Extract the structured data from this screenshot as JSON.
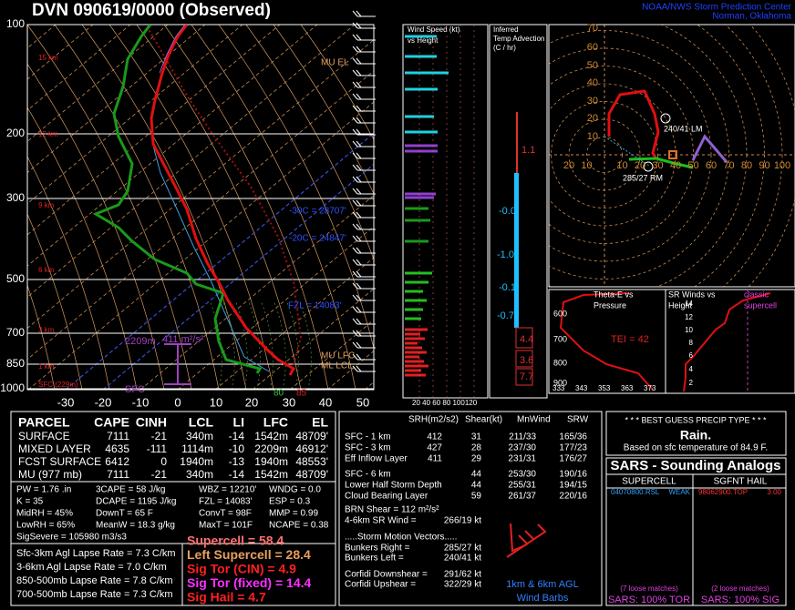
{
  "header": {
    "title": "DVN  090619/0000  (Observed)",
    "org": "NOAA/NWS Storm Prediction Center",
    "place": "Norman, Oklahoma"
  },
  "skewt": {
    "pressures": [
      "100",
      "200",
      "300",
      "500",
      "700",
      "850",
      "1000"
    ],
    "heights": [
      "15 km",
      "12 km",
      "9 km",
      "6 km",
      "3 km",
      "1 km",
      "SFC (229m)"
    ],
    "temps": [
      "-30",
      "-20",
      "-10",
      "0",
      "10",
      "20",
      "30",
      "40",
      "50"
    ],
    "annotations": [
      "MU EL",
      "-30C = 28707'",
      "-20C = 24847'",
      "FZL = 14083'",
      "2209m",
      "411 m²/s²",
      "MU LFC",
      "ML LCL",
      "SFC",
      "80",
      "85"
    ]
  },
  "wind_speed": {
    "title": [
      "Wind Speed (kt)",
      "vs Height"
    ],
    "axis": "20 40 60 80 100120"
  },
  "advection": {
    "title": [
      "Inferred",
      "Temp Advection",
      "(C / hr)"
    ],
    "values": [
      "1.1",
      "-0.0",
      "-1.0",
      "-0.1",
      "-0.7",
      "4.4",
      "3.6",
      "7.7"
    ]
  },
  "hodograph": {
    "rings_y": [
      "70",
      "60",
      "50",
      "40",
      "30",
      "20",
      "10"
    ],
    "rings_x": [
      "20",
      "10",
      "10",
      "20",
      "30",
      "40",
      "50",
      "60",
      "70",
      "80",
      "90",
      "100"
    ],
    "labels": [
      "240/41 LM",
      "285/27 RM"
    ]
  },
  "theta_e": {
    "title": [
      "Theta-E vs",
      "Pressure"
    ],
    "tei": "TEI = 42",
    "pressures": [
      "600",
      "700",
      "800",
      "900"
    ],
    "thetas": [
      "333",
      "343",
      "353",
      "363",
      "373"
    ]
  },
  "sr_winds": {
    "title": [
      "SR Winds vs",
      "Height"
    ],
    "note": [
      "classic",
      "supercell"
    ],
    "heights": [
      "14",
      "12",
      "10",
      "8",
      "6",
      "4",
      "2"
    ]
  },
  "parcel": {
    "header": [
      "PARCEL",
      "CAPE",
      "CINH",
      "LCL",
      "LI",
      "LFC",
      "EL"
    ],
    "rows": [
      [
        "SURFACE",
        "7111",
        "-21",
        "340m",
        "-14",
        "1542m",
        "48709'"
      ],
      [
        "MIXED LAYER",
        "4635",
        "-111",
        "1114m",
        "-10",
        "2209m",
        "46912'"
      ],
      [
        "FCST SURFACE",
        "6412",
        "0",
        "1940m",
        "-13",
        "1940m",
        "48553'"
      ],
      [
        "MU  (977 mb)",
        "7111",
        "-21",
        "340m",
        "-14",
        "1542m",
        "48709'"
      ]
    ]
  },
  "params": [
    [
      "PW = 1.76 .in",
      "3CAPE = 58 J/kg",
      "WBZ = 12210'",
      "WNDG = 0.0"
    ],
    [
      "K = 35",
      "DCAPE = 1195 J/kg",
      "FZL = 14083'",
      "ESP = 0.3"
    ],
    [
      "MidRH = 45%",
      "DownT = 65 F",
      "ConvT = 98F",
      "MMP = 0.99"
    ],
    [
      "LowRH = 65%",
      "MeanW = 18.3 g/kg",
      "MaxT = 101F",
      "NCAPE = 0.38"
    ]
  ],
  "sig_severe": "SigSevere = 105980 m3/s3",
  "lapse_rates": [
    "Sfc-3km Agl Lapse Rate = 7.3 C/km",
    "3-6km Agl Lapse Rate = 7.0 C/km",
    "850-500mb Lapse Rate = 7.8 C/km",
    "700-500mb Lapse Rate = 7.3 C/km"
  ],
  "indices": [
    "Supercell = 58.4",
    "Left Supercell = 28.4",
    "Sig Tor (CIN) = 4.9",
    "Sig Tor (fixed) = 14.4",
    "Sig Hail = 4.7"
  ],
  "kinematics": {
    "header": [
      "SRH(m2/s2)",
      "Shear(kt)",
      "MnWind",
      "SRW"
    ],
    "rows": [
      [
        "SFC - 1 km",
        "412",
        "31",
        "211/33",
        "165/36"
      ],
      [
        "SFC - 3 km",
        "427",
        "28",
        "237/30",
        "177/23"
      ],
      [
        "Eff Inflow Layer",
        "411",
        "29",
        "231/31",
        "176/27"
      ]
    ],
    "deep_rows": [
      [
        "SFC - 6 km",
        "44",
        "253/30",
        "190/16"
      ],
      [
        "Lower Half Storm Depth",
        "44",
        "255/31",
        "194/15"
      ],
      [
        "Cloud Bearing Layer",
        "59",
        "261/37",
        "220/16"
      ]
    ]
  },
  "brn": "BRN Shear = 112 m²/s²",
  "sr_wind": [
    "4-6km SR Wind =",
    "266/19 kt"
  ],
  "motion": {
    "title": ".....Storm Motion Vectors.....",
    "rows": [
      [
        "Bunkers Right =",
        "285/27 kt"
      ],
      [
        "Bunkers Left =",
        "240/41 kt"
      ],
      [
        "Corfidi Downshear =",
        "291/62 kt"
      ],
      [
        "Corfidi Upshear =",
        "322/29 kt"
      ]
    ]
  },
  "barb_legend": [
    "1km & 6km AGL",
    "Wind Barbs"
  ],
  "precip": {
    "title": "* * * BEST GUESS PRECIP TYPE * * *",
    "type": "Rain.",
    "note": "Based on sfc temperature of 84.9 F."
  },
  "sars": {
    "title": "SARS - Sounding Analogs",
    "headers": [
      "SUPERCELL",
      "SGFNT HAIL"
    ],
    "supercell": [
      "04070800.RSL",
      "WEAK"
    ],
    "hail": [
      "98062900.TOP",
      "3.00"
    ],
    "matches": [
      "(7 loose matches)",
      "(2 loose matches)"
    ],
    "summary": [
      "SARS: 100% TOR",
      "SARS: 100% SIG"
    ]
  }
}
